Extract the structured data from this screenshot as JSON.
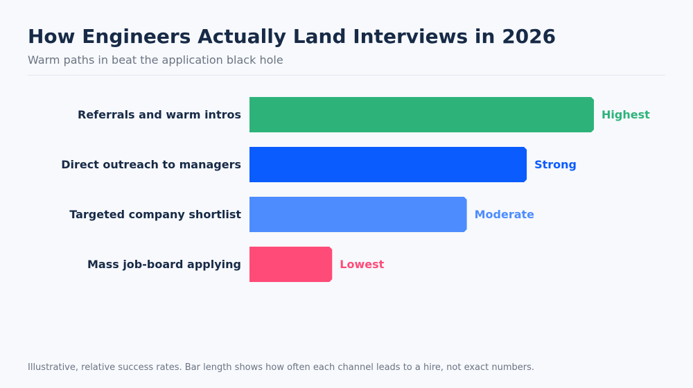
{
  "header": {
    "title": "How Engineers Actually Land Interviews in 2026",
    "subtitle": "Warm paths in beat the application black hole"
  },
  "footnote": "Illustrative, relative success rates. Bar length shows how often each channel leads to a hire, not exact numbers.",
  "chart_data": {
    "type": "bar",
    "orientation": "horizontal",
    "title": "How Engineers Actually Land Interviews in 2026",
    "subtitle": "Warm paths in beat the application black hole",
    "categories": [
      "Referrals and warm intros",
      "Direct outreach to managers",
      "Targeted company shortlist",
      "Mass job-board applying"
    ],
    "values": [
      100,
      80.5,
      63.1,
      24
    ],
    "value_unit": "relative success rate (illustrative, top channel = 100)",
    "data_labels": [
      "Highest",
      "Strong",
      "Moderate",
      "Lowest"
    ],
    "colors": [
      "#2db37a",
      "#0a5cff",
      "#4d8cff",
      "#ff4b78"
    ],
    "xlim": [
      0,
      100
    ],
    "grid": false,
    "legend": "none",
    "xlabel": "",
    "ylabel": ""
  }
}
